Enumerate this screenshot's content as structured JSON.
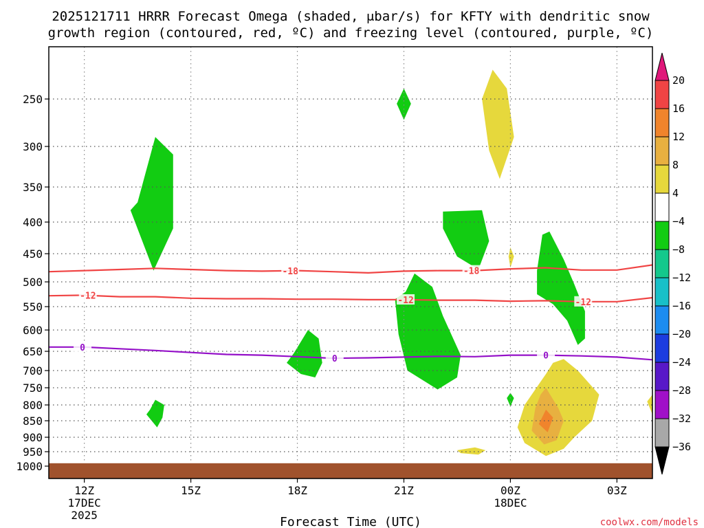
{
  "chart_data": {
    "type": "heatmap",
    "title_line1": "2025121711 HRRR Forecast Omega (shaded, μbar/s) for KFTY with dendritic snow",
    "title_line2": "growth region (contoured, red, ºC) and freezing level (contoured, purple, ºC)",
    "xlabel": "Forecast Time (UTC)",
    "ylabel": "",
    "credit": "coolwx.com/models",
    "x_range_hours": [
      11,
      28
    ],
    "y_range_hpa": [
      200,
      1025
    ],
    "x_ticks": [
      {
        "h": 12,
        "label": "12Z",
        "sub1": "17DEC",
        "sub2": "2025"
      },
      {
        "h": 15,
        "label": "15Z",
        "sub1": "",
        "sub2": ""
      },
      {
        "h": 18,
        "label": "18Z",
        "sub1": "",
        "sub2": ""
      },
      {
        "h": 21,
        "label": "21Z",
        "sub1": "",
        "sub2": ""
      },
      {
        "h": 24,
        "label": "00Z",
        "sub1": "18DEC",
        "sub2": ""
      },
      {
        "h": 27,
        "label": "03Z",
        "sub1": "",
        "sub2": ""
      }
    ],
    "y_ticks": [
      {
        "p": 250,
        "label": "250"
      },
      {
        "p": 300,
        "label": "300"
      },
      {
        "p": 350,
        "label": "350"
      },
      {
        "p": 400,
        "label": "400"
      },
      {
        "p": 450,
        "label": "450"
      },
      {
        "p": 500,
        "label": "500"
      },
      {
        "p": 550,
        "label": "550"
      },
      {
        "p": 600,
        "label": "600"
      },
      {
        "p": 650,
        "label": "650"
      },
      {
        "p": 700,
        "label": "700"
      },
      {
        "p": 750,
        "label": "750"
      },
      {
        "p": 800,
        "label": "800"
      },
      {
        "p": 850,
        "label": "850"
      },
      {
        "p": 900,
        "label": "900"
      },
      {
        "p": 950,
        "label": "950"
      },
      {
        "p": 1000,
        "label": "1000"
      }
    ],
    "colorbar": [
      {
        "label": "20",
        "color": "#e0187a"
      },
      {
        "label": "16",
        "color": "#f04444"
      },
      {
        "label": "12",
        "color": "#f0842c"
      },
      {
        "label": "8",
        "color": "#e8b040"
      },
      {
        "label": "4",
        "color": "#e6d83c"
      },
      {
        "label": "−4",
        "color": "#ffffff"
      },
      {
        "label": "−8",
        "color": "#12cc12"
      },
      {
        "label": "−12",
        "color": "#14c88c"
      },
      {
        "label": "−16",
        "color": "#18c0c8"
      },
      {
        "label": "−20",
        "color": "#1c8cf0"
      },
      {
        "label": "−24",
        "color": "#1c3ce0"
      },
      {
        "label": "−28",
        "color": "#5818c8"
      },
      {
        "label": "−32",
        "color": "#a010c8"
      },
      {
        "label": "−36",
        "color": "#a8a8a8"
      },
      {
        "label": "",
        "color": "#000000"
      }
    ],
    "ground_color": "#a0522d",
    "ground_top_hpa": 990,
    "shaded_regions": [
      {
        "color": "#12cc12",
        "pts": [
          [
            13.5,
            372
          ],
          [
            14.0,
            290
          ],
          [
            14.5,
            310
          ],
          [
            14.5,
            410
          ],
          [
            13.95,
            480
          ],
          [
            13.3,
            383
          ]
        ]
      },
      {
        "color": "#12cc12",
        "pts": [
          [
            21.0,
            240
          ],
          [
            21.2,
            255
          ],
          [
            21.0,
            272
          ],
          [
            20.8,
            255
          ]
        ]
      },
      {
        "color": "#12cc12",
        "pts": [
          [
            22.1,
            385
          ],
          [
            23.2,
            383
          ],
          [
            23.4,
            430
          ],
          [
            23.1,
            478
          ],
          [
            22.5,
            455
          ],
          [
            22.1,
            410
          ]
        ]
      },
      {
        "color": "#12cc12",
        "pts": [
          [
            21.05,
            520
          ],
          [
            21.3,
            485
          ],
          [
            21.8,
            510
          ],
          [
            22.1,
            570
          ],
          [
            22.6,
            660
          ],
          [
            22.5,
            720
          ],
          [
            21.95,
            755
          ],
          [
            21.1,
            700
          ],
          [
            20.85,
            610
          ],
          [
            20.75,
            535
          ]
        ]
      },
      {
        "color": "#12cc12",
        "pts": [
          [
            24.9,
            420
          ],
          [
            25.1,
            415
          ],
          [
            25.5,
            460
          ],
          [
            25.8,
            505
          ],
          [
            26.1,
            560
          ],
          [
            26.1,
            620
          ],
          [
            25.9,
            635
          ],
          [
            25.6,
            580
          ],
          [
            25.2,
            545
          ],
          [
            24.75,
            525
          ],
          [
            24.75,
            480
          ]
        ]
      },
      {
        "color": "#12cc12",
        "pts": [
          [
            17.9,
            655
          ],
          [
            18.3,
            600
          ],
          [
            18.6,
            620
          ],
          [
            18.7,
            680
          ],
          [
            18.5,
            720
          ],
          [
            18.1,
            710
          ],
          [
            17.7,
            680
          ]
        ]
      },
      {
        "color": "#12cc12",
        "pts": [
          [
            13.85,
            815
          ],
          [
            14.0,
            785
          ],
          [
            14.25,
            800
          ],
          [
            14.2,
            840
          ],
          [
            14.05,
            870
          ],
          [
            13.75,
            830
          ]
        ]
      },
      {
        "color": "#12cc12",
        "pts": [
          [
            24.0,
            765
          ],
          [
            24.1,
            780
          ],
          [
            24.0,
            805
          ],
          [
            23.9,
            780
          ]
        ]
      },
      {
        "color": "#e6d83c",
        "pts": [
          [
            23.5,
            222
          ],
          [
            23.9,
            240
          ],
          [
            24.1,
            290
          ],
          [
            23.7,
            340
          ],
          [
            23.4,
            305
          ],
          [
            23.2,
            250
          ]
        ]
      },
      {
        "color": "#e6d83c",
        "pts": [
          [
            24.0,
            440
          ],
          [
            24.1,
            455
          ],
          [
            24.0,
            475
          ],
          [
            23.95,
            455
          ]
        ]
      },
      {
        "color": "#e6d83c",
        "pts": [
          [
            25.5,
            670
          ],
          [
            25.9,
            700
          ],
          [
            26.5,
            770
          ],
          [
            26.3,
            850
          ],
          [
            25.8,
            900
          ],
          [
            25.5,
            940
          ],
          [
            25.0,
            965
          ],
          [
            24.4,
            920
          ],
          [
            24.2,
            870
          ],
          [
            24.4,
            800
          ],
          [
            24.8,
            740
          ],
          [
            25.0,
            710
          ],
          [
            25.2,
            680
          ]
        ]
      },
      {
        "color": "#e6d83c",
        "pts": [
          [
            22.5,
            945
          ],
          [
            23.0,
            935
          ],
          [
            23.3,
            945
          ],
          [
            23.1,
            960
          ],
          [
            22.6,
            955
          ]
        ]
      },
      {
        "color": "#e6d83c",
        "pts": [
          [
            28.0,
            770
          ],
          [
            28.0,
            830
          ],
          [
            27.85,
            790
          ]
        ]
      },
      {
        "color": "#e8b040",
        "pts": [
          [
            25.0,
            750
          ],
          [
            25.35,
            810
          ],
          [
            25.5,
            850
          ],
          [
            25.3,
            910
          ],
          [
            24.95,
            925
          ],
          [
            24.6,
            880
          ],
          [
            24.7,
            810
          ],
          [
            24.85,
            770
          ]
        ]
      },
      {
        "color": "#f0842c",
        "pts": [
          [
            25.0,
            815
          ],
          [
            25.2,
            840
          ],
          [
            25.05,
            885
          ],
          [
            24.8,
            860
          ]
        ]
      }
    ],
    "contours": [
      {
        "label": "-18",
        "color": "#f04444",
        "label_h": 17.8,
        "pts": [
          [
            11,
            482
          ],
          [
            12,
            480
          ],
          [
            13,
            478
          ],
          [
            14,
            476
          ],
          [
            15,
            478
          ],
          [
            16,
            480
          ],
          [
            17,
            481
          ],
          [
            18,
            480
          ],
          [
            19,
            482
          ],
          [
            20,
            484
          ],
          [
            21,
            481
          ],
          [
            22,
            480
          ],
          [
            23,
            480
          ],
          [
            24,
            477
          ],
          [
            25,
            475
          ],
          [
            26,
            479
          ],
          [
            27,
            479
          ],
          [
            28,
            470
          ]
        ]
      },
      {
        "label": "-18",
        "color": "#f04444",
        "label_h": 22.9,
        "pts": []
      },
      {
        "label": "-12",
        "color": "#f04444",
        "label_h": 12.1,
        "pts": [
          [
            11,
            528
          ],
          [
            12,
            527
          ],
          [
            13,
            530
          ],
          [
            14,
            530
          ],
          [
            15,
            533
          ],
          [
            16,
            534
          ],
          [
            17,
            534
          ],
          [
            18,
            535
          ],
          [
            19,
            535
          ],
          [
            20,
            536
          ],
          [
            21,
            536
          ],
          [
            22,
            537
          ],
          [
            23,
            537
          ],
          [
            24,
            539
          ],
          [
            25,
            538
          ],
          [
            26,
            540
          ],
          [
            27,
            540
          ],
          [
            28,
            532
          ]
        ]
      },
      {
        "label": "-12",
        "color": "#f04444",
        "label_h": 21.05,
        "pts": []
      },
      {
        "label": "-12",
        "color": "#f04444",
        "label_h": 26.05,
        "pts": []
      },
      {
        "label": "0",
        "color": "#9410c8",
        "label_h": 11.95,
        "pts": [
          [
            11,
            640
          ],
          [
            12,
            640
          ],
          [
            13,
            644
          ],
          [
            14,
            648
          ],
          [
            15,
            653
          ],
          [
            16,
            658
          ],
          [
            17,
            660
          ],
          [
            18,
            664
          ],
          [
            19,
            668
          ],
          [
            20,
            667
          ],
          [
            21,
            665
          ],
          [
            22,
            663
          ],
          [
            23,
            664
          ],
          [
            24,
            660
          ],
          [
            25,
            660
          ],
          [
            26,
            662
          ],
          [
            27,
            665
          ],
          [
            28,
            672
          ]
        ]
      },
      {
        "label": "0",
        "color": "#9410c8",
        "label_h": 19.05,
        "pts": []
      },
      {
        "label": "0",
        "color": "#9410c8",
        "label_h": 25.0,
        "pts": []
      }
    ]
  }
}
